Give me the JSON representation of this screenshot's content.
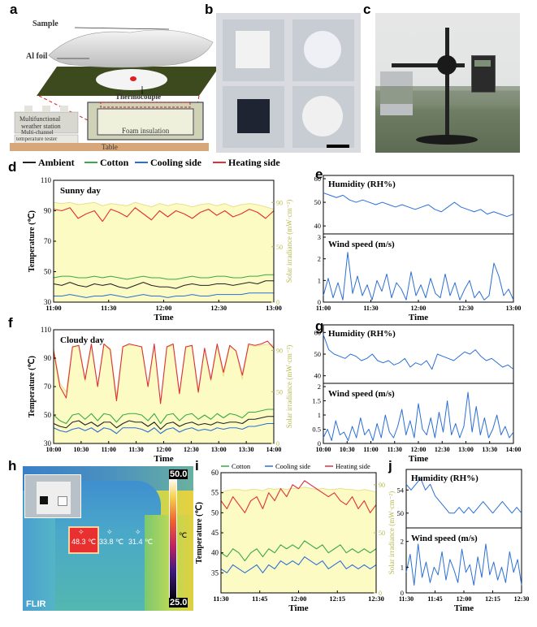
{
  "panels": {
    "a": {
      "label": "a",
      "sample": "Sample",
      "al_foil": "Al foil",
      "thermocouple": "Thermocouple",
      "weather_station": [
        "Multifunctional",
        "weather station"
      ],
      "temp_tester": [
        "Multi-channel",
        "temperature tester"
      ],
      "foam": "Foam insulation",
      "table": "Table"
    },
    "b": {
      "label": "b"
    },
    "c": {
      "label": "c"
    },
    "d": {
      "label": "d"
    },
    "e": {
      "label": "e"
    },
    "f": {
      "label": "f"
    },
    "g": {
      "label": "g"
    },
    "h": {
      "label": "h",
      "spots": [
        "48.3 ℃",
        "33.8 ℃",
        "31.4 ℃"
      ],
      "scale_max": "50.0",
      "scale_min": "25.0",
      "scale_unit": "℃",
      "brand": "FLIR"
    },
    "i": {
      "label": "i"
    },
    "j": {
      "label": "j"
    }
  },
  "legend_top": [
    "Ambient",
    "Cotton",
    "Cooling side",
    "Heating side"
  ],
  "legend_i": [
    "Cotton",
    "Cooling side",
    "Heating side"
  ],
  "colors": {
    "ambient": "#222222",
    "cotton": "#3aa845",
    "cooling": "#2a6fd6",
    "heating": "#e0303a",
    "irradiance": "#fdfbc4",
    "irr_line": "#e8e08a",
    "weather": "#2a6fd6",
    "axis_right": "#b8b84a"
  },
  "chart_data": [
    {
      "id": "d",
      "type": "line",
      "title": "Sunny day",
      "xlabel": "Time",
      "ylabel": "Temperature (℃)",
      "y2label": "Solar irradiance (mW·cm⁻²)",
      "x_ticks": [
        "11:00",
        "11:30",
        "12:00",
        "12:30",
        "13:00"
      ],
      "ylim": [
        30,
        110
      ],
      "y_ticks": [
        30,
        50,
        70,
        90,
        110
      ],
      "y2lim": [
        0,
        110
      ],
      "y2_ticks": [
        0,
        50,
        90
      ],
      "series": [
        {
          "name": "Heating side",
          "values": [
            91,
            90,
            92,
            85,
            88,
            90,
            83,
            91,
            89,
            86,
            92,
            88,
            84,
            90,
            86,
            90,
            88,
            85,
            89,
            91,
            87,
            90,
            86,
            88,
            91,
            89,
            85,
            90
          ]
        },
        {
          "name": "Cotton",
          "values": [
            46,
            47,
            47,
            46,
            46,
            47,
            46,
            47,
            46,
            45,
            46,
            47,
            46,
            46,
            45,
            45,
            46,
            47,
            46,
            46,
            47,
            47,
            46,
            46,
            47,
            47,
            48,
            48
          ]
        },
        {
          "name": "Ambient",
          "values": [
            42,
            41,
            43,
            41,
            40,
            42,
            41,
            42,
            40,
            39,
            41,
            43,
            41,
            40,
            40,
            39,
            41,
            42,
            41,
            41,
            42,
            42,
            41,
            42,
            43,
            42,
            44,
            44
          ]
        },
        {
          "name": "Cooling side",
          "values": [
            34,
            34,
            35,
            34,
            33,
            34,
            34,
            35,
            34,
            33,
            34,
            35,
            34,
            34,
            33,
            34,
            34,
            35,
            34,
            34,
            35,
            35,
            35,
            35,
            36,
            36,
            36,
            36
          ]
        },
        {
          "name": "Solar irradiance",
          "values": [
            90,
            89,
            90,
            88,
            89,
            90,
            87,
            89,
            88,
            87,
            90,
            88,
            86,
            89,
            87,
            89,
            88,
            86,
            88,
            89,
            87,
            89,
            86,
            88,
            89,
            88,
            86,
            84
          ]
        }
      ]
    },
    {
      "id": "e",
      "type": "line",
      "title": "Humidity (RH%)",
      "y_ticks": [
        40,
        50,
        60
      ],
      "ylim": [
        38,
        60
      ],
      "x_ticks": [
        "11:00",
        "11:30",
        "12:00",
        "12:30",
        "13:00"
      ],
      "values": [
        54,
        53,
        52,
        53,
        51,
        50,
        51,
        50,
        49,
        50,
        49,
        48,
        49,
        48,
        47,
        48,
        49,
        47,
        46,
        48,
        50,
        48,
        47,
        46,
        47,
        45,
        46,
        45,
        44,
        45
      ]
    },
    {
      "id": "e2",
      "type": "line",
      "title": "Wind speed (m/s)",
      "xlabel": "Time",
      "y_ticks": [
        0,
        1,
        2,
        3
      ],
      "ylim": [
        0,
        3
      ],
      "x_ticks": [
        "11:00",
        "11:30",
        "12:00",
        "12:30",
        "13:00"
      ],
      "values": [
        0.3,
        1.1,
        0.2,
        0.9,
        0.1,
        2.3,
        0.4,
        1.2,
        0.3,
        0.8,
        0.1,
        1.0,
        0.5,
        1.3,
        0.2,
        0.9,
        0.6,
        0.1,
        1.4,
        0.3,
        0.8,
        0.2,
        1.1,
        0.4,
        0.2,
        1.3,
        0.3,
        0.9,
        0.1,
        0.6,
        1.0,
        0.2,
        0.5,
        0.1,
        0.3,
        1.8,
        1.2,
        0.3,
        0.6,
        0.1
      ]
    },
    {
      "id": "f",
      "type": "line",
      "title": "Cloudy day",
      "xlabel": "Time",
      "ylabel": "Temperature (℃)",
      "y2label": "Solar irradiance (mW·cm⁻²)",
      "x_ticks": [
        "10:00",
        "10:30",
        "11:00",
        "11:30",
        "12:00",
        "12:30",
        "13:00",
        "13:30",
        "14:00"
      ],
      "ylim": [
        30,
        110
      ],
      "y_ticks": [
        30,
        50,
        70,
        90,
        110
      ],
      "y2lim": [
        0,
        110
      ],
      "y2_ticks": [
        0,
        50,
        90
      ],
      "series": [
        {
          "name": "Heating side",
          "values": [
            95,
            70,
            62,
            98,
            99,
            75,
            100,
            70,
            100,
            96,
            60,
            98,
            100,
            99,
            98,
            70,
            100,
            58,
            98,
            100,
            65,
            98,
            99,
            66,
            97,
            75,
            100,
            80,
            99,
            95,
            78,
            100,
            99,
            100,
            102,
            97
          ]
        },
        {
          "name": "Cotton",
          "values": [
            50,
            46,
            44,
            50,
            51,
            47,
            51,
            46,
            51,
            50,
            45,
            50,
            51,
            51,
            50,
            46,
            51,
            44,
            50,
            51,
            46,
            50,
            51,
            47,
            50,
            47,
            51,
            48,
            51,
            50,
            48,
            52,
            52,
            53,
            54,
            54
          ]
        },
        {
          "name": "Ambient",
          "values": [
            44,
            42,
            41,
            45,
            46,
            43,
            45,
            42,
            45,
            45,
            41,
            44,
            46,
            45,
            45,
            42,
            45,
            40,
            44,
            45,
            42,
            44,
            45,
            43,
            44,
            43,
            45,
            44,
            45,
            45,
            44,
            47,
            47,
            48,
            49,
            49
          ]
        },
        {
          "name": "Cooling side",
          "values": [
            41,
            39,
            38,
            40,
            41,
            39,
            41,
            38,
            41,
            40,
            37,
            41,
            41,
            41,
            40,
            38,
            41,
            37,
            40,
            41,
            38,
            40,
            41,
            39,
            40,
            39,
            41,
            40,
            41,
            41,
            40,
            42,
            42,
            43,
            44,
            44
          ]
        },
        {
          "name": "Solar irradiance",
          "values": [
            92,
            58,
            50,
            93,
            94,
            60,
            95,
            55,
            96,
            92,
            45,
            94,
            95,
            95,
            93,
            55,
            95,
            40,
            93,
            95,
            50,
            93,
            94,
            52,
            92,
            60,
            95,
            65,
            94,
            90,
            62,
            95,
            94,
            95,
            96,
            95
          ]
        }
      ]
    },
    {
      "id": "g",
      "type": "line",
      "title": "Humidity (RH%)",
      "y_ticks": [
        40,
        50,
        60
      ],
      "ylim": [
        38,
        62
      ],
      "x_ticks": [
        "10:00",
        "10:30",
        "11:00",
        "11:30",
        "12:00",
        "12:30",
        "13:00",
        "13:30",
        "14:00"
      ],
      "values": [
        59,
        52,
        50,
        49,
        48,
        50,
        49,
        47,
        48,
        50,
        47,
        46,
        47,
        45,
        46,
        48,
        44,
        46,
        45,
        47,
        43,
        50,
        49,
        48,
        47,
        49,
        51,
        50,
        52,
        49,
        47,
        48,
        46,
        44,
        45,
        43
      ]
    },
    {
      "id": "g2",
      "type": "line",
      "title": "Wind speed (m/s)",
      "xlabel": "Time",
      "y_ticks": [
        0.0,
        0.5,
        1.0,
        1.5,
        2.0
      ],
      "ylim": [
        0,
        2
      ],
      "x_ticks": [
        "10:00",
        "10:30",
        "11:00",
        "11:30",
        "12:00",
        "12:30",
        "13:00",
        "13:30",
        "14:00"
      ],
      "values": [
        0.2,
        0.5,
        0.1,
        0.8,
        0.3,
        0.4,
        0.1,
        0.6,
        0.2,
        0.9,
        0.3,
        0.5,
        0.1,
        0.7,
        0.2,
        1.0,
        0.4,
        0.2,
        0.6,
        1.2,
        0.3,
        0.8,
        0.2,
        1.4,
        0.5,
        0.3,
        0.9,
        0.2,
        1.1,
        0.4,
        1.5,
        0.3,
        0.7,
        0.2,
        0.6,
        1.8,
        0.4,
        1.3,
        0.3,
        0.9,
        0.2,
        0.5,
        1.0,
        0.3,
        0.6,
        0.2,
        0.4
      ]
    },
    {
      "id": "i",
      "type": "line",
      "xlabel": "Time",
      "ylabel": "Temperature (℃)",
      "y2label": "Solar irradiance (mW·cm⁻²)",
      "x_ticks": [
        "11:30",
        "11:45",
        "12:00",
        "12:15",
        "12:30"
      ],
      "ylim": [
        30,
        60
      ],
      "y_ticks": [
        35,
        40,
        45,
        50,
        55,
        60
      ],
      "y2lim": [
        0,
        100
      ],
      "y2_ticks": [
        0,
        50,
        90
      ],
      "series": [
        {
          "name": "Heating side",
          "values": [
            53,
            51,
            54,
            52,
            50,
            53,
            54,
            51,
            55,
            53,
            56,
            54,
            57,
            56,
            58,
            57,
            56,
            55,
            54,
            55,
            53,
            52,
            54,
            51,
            53,
            50,
            52
          ]
        },
        {
          "name": "Cotton",
          "values": [
            40,
            39,
            41,
            40,
            38,
            40,
            41,
            39,
            41,
            40,
            42,
            41,
            42,
            41,
            43,
            42,
            41,
            42,
            40,
            41,
            42,
            40,
            41,
            40,
            41,
            40,
            41
          ]
        },
        {
          "name": "Cooling side",
          "values": [
            36,
            35,
            37,
            36,
            35,
            36,
            37,
            35,
            37,
            36,
            38,
            37,
            38,
            37,
            39,
            38,
            37,
            38,
            36,
            37,
            38,
            36,
            37,
            36,
            37,
            36,
            37
          ]
        },
        {
          "name": "Solar irradiance",
          "values": [
            84,
            85,
            86,
            86,
            85,
            86,
            86,
            85,
            87,
            86,
            87,
            86,
            87,
            87,
            88,
            87,
            86,
            87,
            86,
            86,
            87,
            86,
            86,
            85,
            86,
            85,
            84
          ]
        }
      ]
    },
    {
      "id": "j",
      "type": "line",
      "title": "Humidity (RH%)",
      "y_ticks": [
        50,
        54
      ],
      "ylim": [
        48,
        57
      ],
      "x_ticks": [
        "11:30",
        "11:45",
        "12:00",
        "12:15",
        "12:30"
      ],
      "values": [
        55,
        54,
        55,
        56,
        54,
        55,
        53,
        52,
        51,
        50,
        50,
        51,
        50,
        51,
        50,
        51,
        52,
        51,
        50,
        51,
        52,
        51,
        50,
        51,
        50
      ]
    },
    {
      "id": "j2",
      "type": "line",
      "title": "Wind speed (m/s)",
      "xlabel": "Time",
      "y_ticks": [
        0,
        1,
        2
      ],
      "ylim": [
        0,
        2.4
      ],
      "x_ticks": [
        "11:30",
        "11:45",
        "12:00",
        "12:15",
        "12:30"
      ],
      "values": [
        0.8,
        1.5,
        0.3,
        1.9,
        0.6,
        1.2,
        0.4,
        1.0,
        0.7,
        1.6,
        0.5,
        1.3,
        0.9,
        0.4,
        1.7,
        0.8,
        1.1,
        0.3,
        1.4,
        0.6,
        1.9,
        0.7,
        1.2,
        0.5,
        1.0,
        0.4,
        1.6,
        0.8,
        1.3,
        0.3
      ]
    }
  ]
}
